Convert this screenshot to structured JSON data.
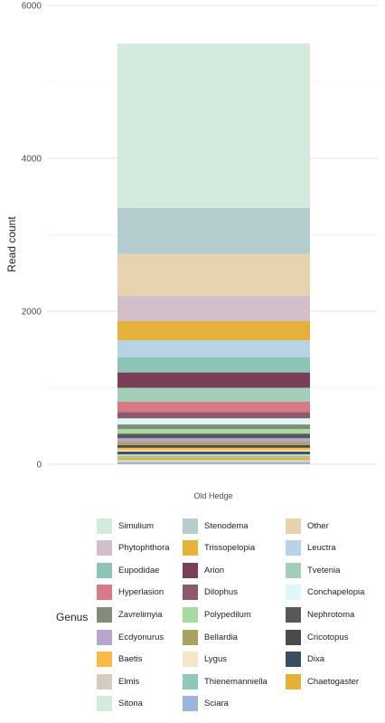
{
  "chart_data": {
    "type": "bar",
    "stacked": true,
    "categories": [
      "Old Hedge"
    ],
    "xlabel": "",
    "ylabel": "Read count",
    "ylim": [
      0,
      6000
    ],
    "yticks": [
      0,
      2000,
      4000,
      6000
    ],
    "grid": true,
    "legend_position": "bottom",
    "legend_title": "Genus",
    "series": [
      {
        "name": "Sciara",
        "color": "#9bb5dc",
        "values": [
          30
        ]
      },
      {
        "name": "Sitona",
        "color": "#d3eadc",
        "values": [
          20
        ]
      },
      {
        "name": "Chaetogaster",
        "color": "#e5b13b",
        "values": [
          35
        ]
      },
      {
        "name": "Thienemanniella",
        "color": "#8fc7b8",
        "values": [
          25
        ]
      },
      {
        "name": "Elmis",
        "color": "#d4cbc1",
        "values": [
          20
        ]
      },
      {
        "name": "Dixa",
        "color": "#3a4f5e",
        "values": [
          35
        ]
      },
      {
        "name": "Lygus",
        "color": "#f5e6c8",
        "values": [
          20
        ]
      },
      {
        "name": "Baetis",
        "color": "#fbb948",
        "values": [
          30
        ]
      },
      {
        "name": "Cricotopus",
        "color": "#4a4a4a",
        "values": [
          35
        ]
      },
      {
        "name": "Bellardia",
        "color": "#a8a263",
        "values": [
          40
        ]
      },
      {
        "name": "Ecdyonurus",
        "color": "#b8a5cc",
        "values": [
          50
        ]
      },
      {
        "name": "Nephrotoma",
        "color": "#585858",
        "values": [
          60
        ]
      },
      {
        "name": "Polypedilum",
        "color": "#a6dca2",
        "values": [
          60
        ]
      },
      {
        "name": "Zavrelimyia",
        "color": "#848c79",
        "values": [
          60
        ]
      },
      {
        "name": "Conchapelopia",
        "color": "#dff8f7",
        "values": [
          80
        ]
      },
      {
        "name": "Dilophus",
        "color": "#8c5a6c",
        "values": [
          80
        ]
      },
      {
        "name": "Hyperlasion",
        "color": "#d77a86",
        "values": [
          140
        ]
      },
      {
        "name": "Tvetenia",
        "color": "#a0ceb6",
        "values": [
          180
        ]
      },
      {
        "name": "Arion",
        "color": "#7a3e56",
        "values": [
          200
        ]
      },
      {
        "name": "Eupodidae",
        "color": "#8dc4b8",
        "values": [
          200
        ]
      },
      {
        "name": "Leuctra",
        "color": "#b8d3e6",
        "values": [
          220
        ]
      },
      {
        "name": "Trissopelopia",
        "color": "#e5b23c",
        "values": [
          250
        ]
      },
      {
        "name": "Phytophthora",
        "color": "#d2bfca",
        "values": [
          330
        ]
      },
      {
        "name": "Other",
        "color": "#e7d3b0",
        "values": [
          550
        ]
      },
      {
        "name": "Stenodema",
        "color": "#b6cdd0",
        "values": [
          600
        ]
      },
      {
        "name": "Simulium",
        "color": "#d3eadc",
        "values": [
          2150
        ]
      }
    ]
  },
  "legend_order": [
    "Simulium",
    "Stenodema",
    "Other",
    "Phytophthora",
    "Trissopelopia",
    "Leuctra",
    "Eupodidae",
    "Arion",
    "Tvetenia",
    "Hyperlasion",
    "Dilophus",
    "Conchapelopia",
    "Zavrelimyia",
    "Polypedilum",
    "Nephrotoma",
    "Ecdyonurus",
    "Bellardia",
    "Cricotopus",
    "Baetis",
    "Lygus",
    "Dixa",
    "Elmis",
    "Thienemanniella",
    "Chaetogaster",
    "Sitona",
    "Sciara"
  ]
}
